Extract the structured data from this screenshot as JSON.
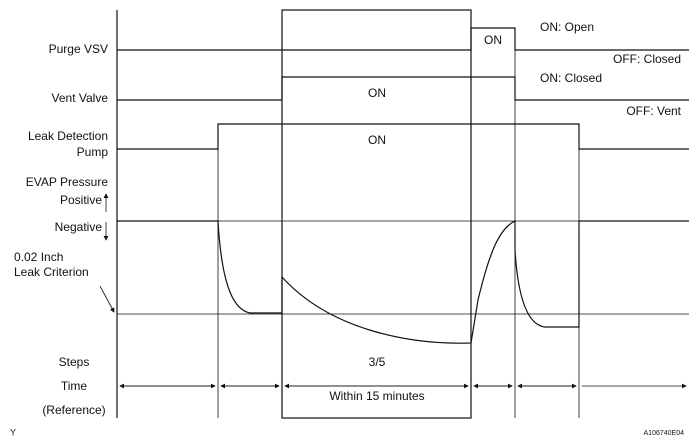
{
  "signals": {
    "purge_vsv": {
      "label": "Purge VSV",
      "on": "ON",
      "legend_on": "ON: Open",
      "legend_off": "OFF: Closed"
    },
    "vent_valve": {
      "label": "Vent Valve",
      "on": "ON",
      "legend_on": "ON: Closed",
      "legend_off": "OFF: Vent"
    },
    "leak_detection_pump": {
      "label_lines": [
        "Leak Detection",
        "Pump"
      ],
      "on": "ON"
    }
  },
  "pressure": {
    "label": "EVAP Pressure",
    "positive": "Positive",
    "negative": "Negative",
    "criterion_lines": [
      "0.02 Inch",
      "Leak Criterion"
    ]
  },
  "rows": {
    "steps": "Steps",
    "step_value": "3/5",
    "time": "Time",
    "time_value": "Within 15 minutes",
    "reference": "(Reference)"
  },
  "footer": {
    "mark": "Y",
    "code": "A106740E04"
  }
}
